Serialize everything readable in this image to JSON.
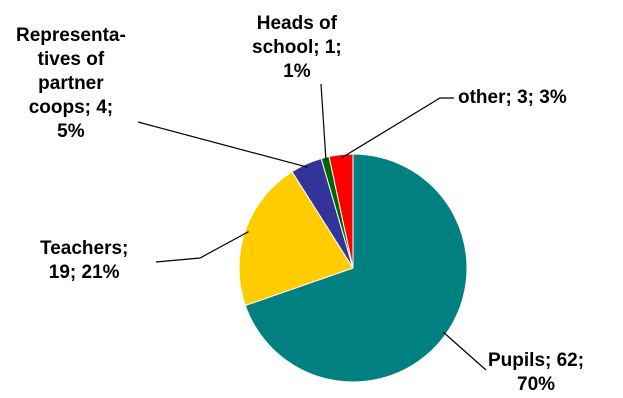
{
  "chart_data": {
    "type": "pie",
    "title": "",
    "legend": "none",
    "start_angle_deg": 0,
    "direction": "clockwise",
    "slices": [
      {
        "category": "Pupils",
        "value": 62,
        "percent": "70%",
        "color": "#008080",
        "label_lines": [
          "Pupils; 62;",
          "70%"
        ]
      },
      {
        "category": "Teachers",
        "value": 19,
        "percent": "21%",
        "color": "#FFCC00",
        "label_lines": [
          "Teachers;",
          "19; 21%"
        ]
      },
      {
        "category": "Representatives of partner coops",
        "value": 4,
        "percent": "5%",
        "color": "#333399",
        "label_lines": [
          "Representa-",
          "tives of",
          "partner",
          "coops; 4;",
          "5%"
        ]
      },
      {
        "category": "Heads of school",
        "value": 1,
        "percent": "1%",
        "color": "#006600",
        "label_lines": [
          "Heads of",
          "school; 1;",
          "1%"
        ]
      },
      {
        "category": "other",
        "value": 3,
        "percent": "3%",
        "color": "#FF0000",
        "label_lines": [
          "other; 3; 3%"
        ]
      }
    ]
  }
}
